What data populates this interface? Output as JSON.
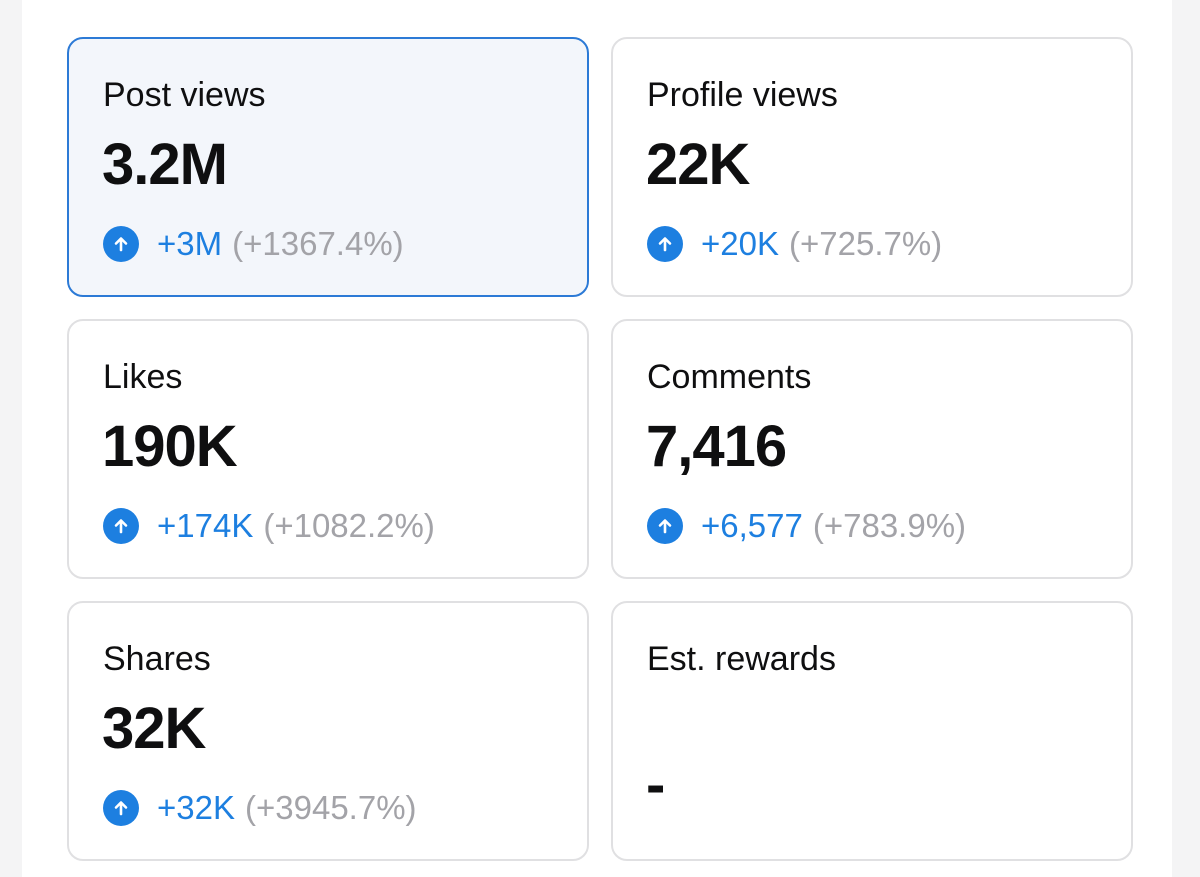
{
  "cards": [
    {
      "label": "Post views",
      "value": "3.2M",
      "delta": "+3M",
      "pct": "(+1367.4%)",
      "selected": true
    },
    {
      "label": "Profile views",
      "value": "22K",
      "delta": "+20K",
      "pct": "(+725.7%)"
    },
    {
      "label": "Likes",
      "value": "190K",
      "delta": "+174K",
      "pct": "(+1082.2%)"
    },
    {
      "label": "Comments",
      "value": "7,416",
      "delta": "+6,577",
      "pct": "(+783.9%)"
    },
    {
      "label": "Shares",
      "value": "32K",
      "delta": "+32K",
      "pct": "(+3945.7%)"
    },
    {
      "label": "Est. rewards",
      "value": "-"
    }
  ],
  "icons": {
    "trend": "arrow-up-circle-icon"
  },
  "colors": {
    "accent": "#1d7fe0",
    "selected_border": "#2c7ad6",
    "selected_bg": "#f3f6fb",
    "muted": "#a3a3a8"
  }
}
